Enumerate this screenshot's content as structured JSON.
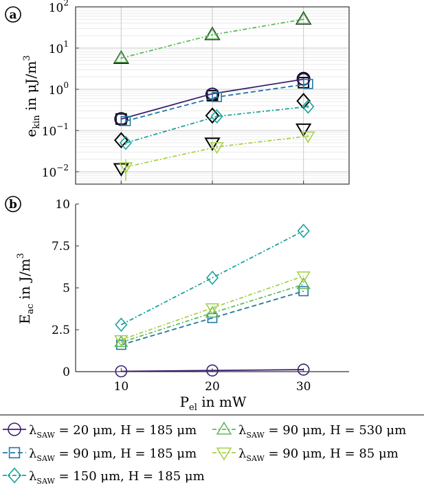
{
  "chart_data": [
    {
      "panel_label": "a",
      "type": "line",
      "yscale": "log",
      "ylabel_main": "e",
      "ylabel_sub": "kin",
      "ylabel_rest": " in μJ/m",
      "ylabel_sup": "3",
      "x": [
        10,
        20,
        30
      ],
      "xlim": [
        5,
        35
      ],
      "ylim": [
        0.005,
        100
      ],
      "xticks": [
        10,
        20,
        30
      ],
      "ytick_labels": [
        {
          "value": 0.01,
          "base": "10",
          "exp": "−2"
        },
        {
          "value": 0.1,
          "base": "10",
          "exp": "−1"
        },
        {
          "value": 1,
          "base": "10",
          "exp": "0"
        },
        {
          "value": 10,
          "base": "10",
          "exp": "1"
        },
        {
          "value": 100,
          "base": "10",
          "exp": "2"
        }
      ],
      "grid": true,
      "series": [
        {
          "id": "s1",
          "x_offset": 0,
          "values": [
            0.19,
            0.78,
            1.75
          ],
          "error": [
            0.02,
            0.05,
            0.1
          ]
        },
        {
          "id": "s2",
          "x_offset": 0.5,
          "values": [
            0.17,
            0.65,
            1.35
          ],
          "error": [
            0.02,
            0.05,
            0.1
          ]
        },
        {
          "id": "s3",
          "x_offset": 0.5,
          "values": [
            0.05,
            0.22,
            0.38
          ],
          "error": [
            0.005,
            0.02,
            0.03
          ]
        },
        {
          "id": "s4",
          "x_offset": 0,
          "values": [
            5.7,
            21,
            50
          ],
          "error": [
            0.3,
            1,
            2
          ]
        },
        {
          "id": "s5",
          "x_offset": 0.5,
          "values": [
            0.013,
            0.04,
            0.073
          ],
          "error": [
            0.007,
            0.004,
            0.005
          ]
        }
      ],
      "reference_markers": [
        {
          "shape": "circle",
          "x": [
            10,
            20,
            30
          ],
          "values": [
            0.19,
            0.75,
            1.8
          ]
        },
        {
          "shape": "square",
          "x": [
            10,
            20,
            30
          ],
          "values": [
            0.19,
            0.7,
            1.45
          ]
        },
        {
          "shape": "diamond",
          "x": [
            10,
            20,
            30
          ],
          "values": [
            0.058,
            0.23,
            0.52
          ]
        },
        {
          "shape": "triangle-up",
          "x": [
            10,
            20,
            30
          ],
          "values": [
            5.6,
            21,
            50
          ]
        },
        {
          "shape": "triangle-down",
          "x": [
            10,
            20,
            30
          ],
          "values": [
            0.012,
            0.05,
            0.11
          ]
        }
      ]
    },
    {
      "panel_label": "b",
      "type": "line",
      "yscale": "linear",
      "ylabel_main": "E",
      "ylabel_sub": "ac",
      "ylabel_rest": " in J/m",
      "ylabel_sup": "3",
      "xlabel_main": "P",
      "xlabel_sub": "el",
      "xlabel_rest": " in mW",
      "x": [
        10,
        20,
        30
      ],
      "xlim": [
        5,
        35
      ],
      "ylim": [
        0,
        10
      ],
      "xtick_labels": [
        "10",
        "20",
        "30"
      ],
      "ytick_labels": [
        {
          "value": 0,
          "label": "0"
        },
        {
          "value": 2.5,
          "label": "2.5"
        },
        {
          "value": 5,
          "label": "5"
        },
        {
          "value": 7.5,
          "label": "7.5"
        },
        {
          "value": 10,
          "label": "10"
        }
      ],
      "grid": false,
      "series": [
        {
          "id": "s1",
          "values": [
            0.02,
            0.07,
            0.12
          ]
        },
        {
          "id": "s2",
          "values": [
            1.6,
            3.2,
            4.8
          ]
        },
        {
          "id": "s3",
          "values": [
            2.8,
            5.6,
            8.4
          ]
        },
        {
          "id": "s4",
          "values": [
            1.75,
            3.5,
            5.2
          ]
        },
        {
          "id": "s5",
          "values": [
            1.9,
            3.8,
            5.7
          ]
        }
      ]
    }
  ],
  "series_styles": [
    {
      "id": "s1",
      "color": "#3b1f6e",
      "dash": "",
      "marker": "circle"
    },
    {
      "id": "s2",
      "color": "#1f77a0",
      "dash": "7,4",
      "marker": "square"
    },
    {
      "id": "s3",
      "color": "#17a39a",
      "dash": "6,3,2,3",
      "marker": "diamond"
    },
    {
      "id": "s4",
      "color": "#5fba5a",
      "dash": "6,3,2,3",
      "marker": "triangle-up"
    },
    {
      "id": "s5",
      "color": "#a7d14a",
      "dash": "6,3,2,3",
      "marker": "triangle-down"
    }
  ],
  "legend": [
    {
      "series": "s1",
      "lambda": "λ",
      "lambda_sub": "SAW",
      "text": " = 20 μm, H = 185 μm"
    },
    {
      "series": "s4",
      "lambda": "λ",
      "lambda_sub": "SAW",
      "text": " = 90 μm, H = 530 μm"
    },
    {
      "series": "s2",
      "lambda": "λ",
      "lambda_sub": "SAW",
      "text": " = 90 μm, H = 185 μm"
    },
    {
      "series": "s5",
      "lambda": "λ",
      "lambda_sub": "SAW",
      "text": " = 90 μm, H = 85 μm"
    },
    {
      "series": "s3",
      "lambda": "λ",
      "lambda_sub": "SAW",
      "text": " = 150 μm, H = 185 μm"
    }
  ]
}
